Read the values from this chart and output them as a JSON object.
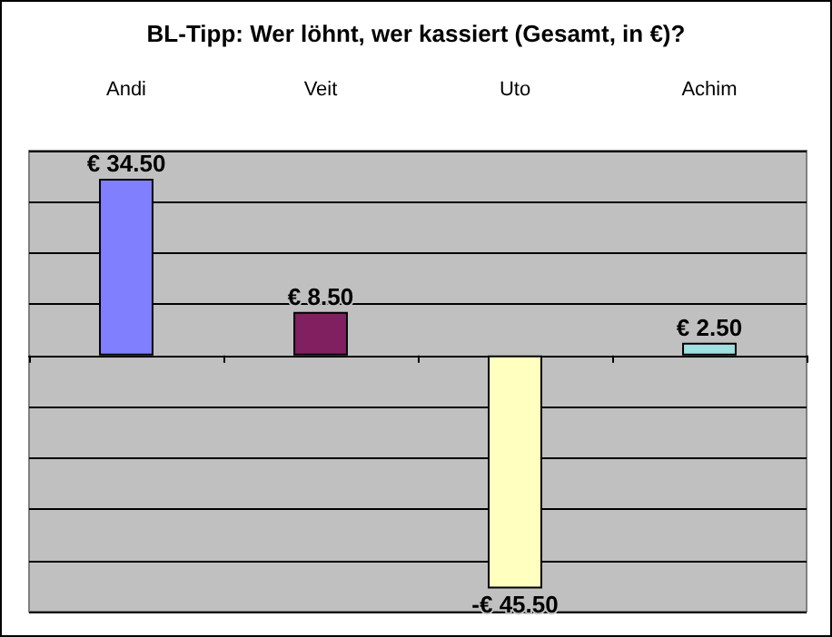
{
  "chart_data": {
    "type": "bar",
    "title": "BL-Tipp: Wer löhnt, wer kassiert (Gesamt, in €)?",
    "categories": [
      "Andi",
      "Veit",
      "Uto",
      "Achim"
    ],
    "values": [
      34.5,
      8.5,
      -45.5,
      2.5
    ],
    "colors": [
      "#8080ff",
      "#802060",
      "#ffffc0",
      "#a0e0e0"
    ],
    "value_labels": [
      "€ 34.50",
      "€ 8.50",
      "-€ 45.50",
      "€ 2.50"
    ],
    "ylim": [
      -50,
      40
    ],
    "tick_labels": "x",
    "grid": "y"
  }
}
